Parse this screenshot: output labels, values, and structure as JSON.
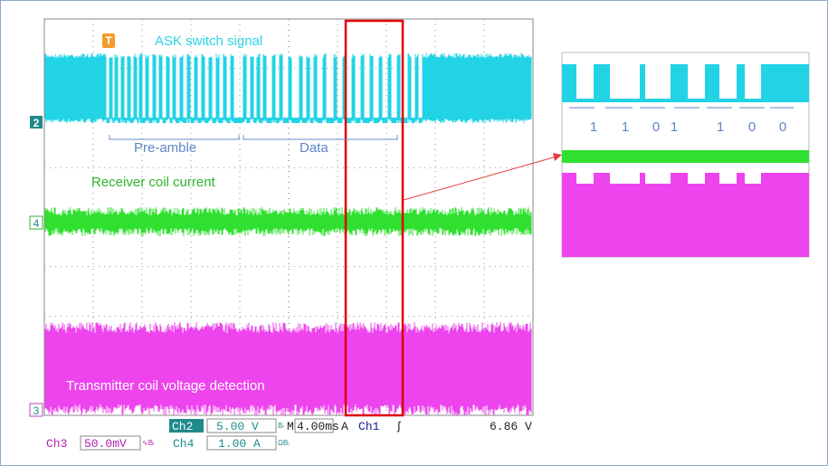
{
  "scope": {
    "trigger_marker": "T",
    "channel_markers": [
      "2",
      "4",
      "3"
    ],
    "annotations": {
      "ask": "ASK switch signal",
      "preamble": "Pre-amble",
      "data": "Data",
      "receiver": "Receiver coil current",
      "transmitter": "Transmitter coil voltage detection"
    }
  },
  "inset": {
    "bits": [
      "1",
      "1",
      "0",
      "1",
      "1",
      "0",
      "0"
    ]
  },
  "status": {
    "row1": [
      "Ch2",
      "5.00 V",
      "Bₗ",
      "M",
      "4.00ms",
      "A",
      "Ch1",
      "ʃ",
      "6.86 V"
    ],
    "row2": [
      "Ch3",
      "50.0mV",
      "∿Bₗ",
      "Ch4",
      "1.00 A",
      "ΩBₗ"
    ]
  }
}
